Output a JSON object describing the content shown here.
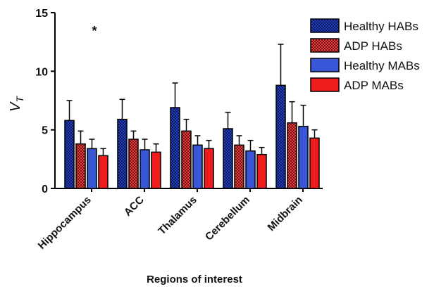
{
  "chart_data": {
    "type": "bar",
    "title": "",
    "xlabel": "Regions of interest",
    "ylabel_main": "V",
    "ylabel_sub": "T",
    "ylim": [
      0,
      15
    ],
    "yticks": [
      "0",
      "5",
      "10",
      "15"
    ],
    "grid": false,
    "legend_position": "top-right",
    "categories": [
      "Hippocampus",
      "ACC",
      "Thalamus",
      "Cerebellum",
      "Midbrain"
    ],
    "series": [
      {
        "name": "Healthy HABs",
        "values": [
          5.8,
          5.9,
          6.9,
          5.1,
          8.8
        ],
        "errors": [
          1.7,
          1.7,
          2.1,
          1.4,
          3.5
        ],
        "color": "#1f3fc0",
        "pattern": "dots"
      },
      {
        "name": "ADP HABs",
        "values": [
          3.8,
          4.2,
          4.9,
          3.7,
          5.6
        ],
        "errors": [
          1.1,
          0.7,
          1.0,
          0.8,
          1.8
        ],
        "color": "#d93030",
        "pattern": "dots"
      },
      {
        "name": "Healthy MABs",
        "values": [
          3.4,
          3.3,
          3.7,
          3.2,
          5.3
        ],
        "errors": [
          0.8,
          0.9,
          0.8,
          0.9,
          1.8
        ],
        "color": "#3a56d8",
        "pattern": "solid"
      },
      {
        "name": "ADP MABs",
        "values": [
          2.8,
          3.1,
          3.4,
          2.9,
          4.3
        ],
        "errors": [
          0.6,
          0.7,
          0.7,
          0.6,
          0.7
        ],
        "color": "#ee1c1c",
        "pattern": "solid"
      }
    ],
    "annotations": [
      {
        "text": "*",
        "category": "Hippocampus",
        "y": 13.8
      }
    ]
  }
}
